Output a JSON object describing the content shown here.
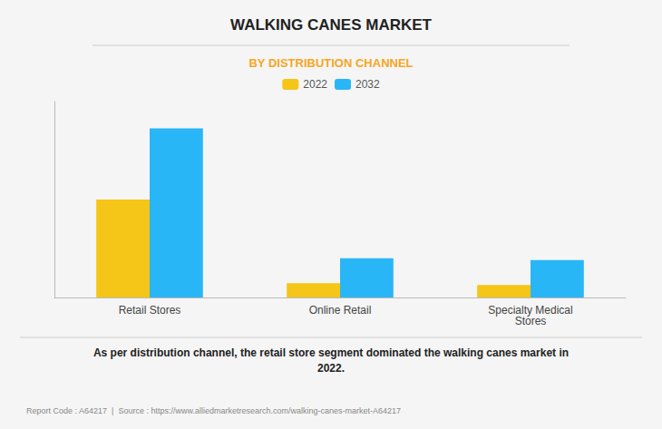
{
  "chart_data": {
    "type": "bar",
    "title": "WALKING CANES MARKET",
    "subtitle": "BY DISTRIBUTION CHANNEL",
    "categories": [
      "Retail Stores",
      "Online Retail",
      "Specialty Medical\nStores"
    ],
    "series": [
      {
        "name": "2022",
        "color": "#F5C518",
        "values": [
          55,
          8,
          7
        ]
      },
      {
        "name": "2032",
        "color": "#29B6F6",
        "values": [
          95,
          22,
          21
        ]
      }
    ],
    "ylim": [
      0,
      110
    ],
    "grid": false,
    "legend": "top",
    "tick_labels": "x",
    "annotations": [
      "As per distribution channel, the retail store segment dominated the walking canes market in\n2022.",
      "Report Code : A64217  |  Source : https://www.alliedmarketresearch.com/walking-canes-market-A64217"
    ]
  }
}
